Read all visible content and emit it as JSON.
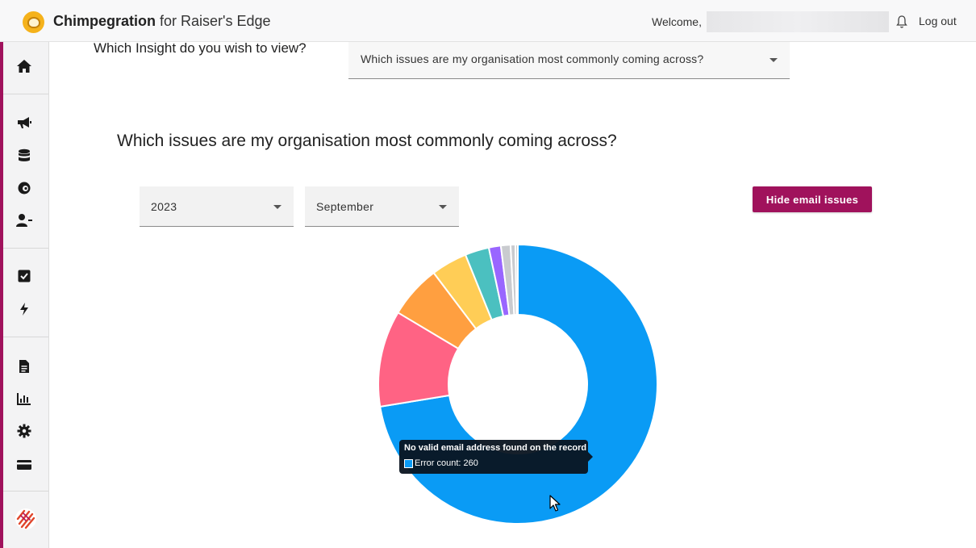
{
  "header": {
    "brand_name": "Chimpegration",
    "brand_suffix": "for Raiser's Edge",
    "welcome": "Welcome, ",
    "logout": "Log out"
  },
  "sidebar": {
    "items": [
      {
        "icon": "home-icon"
      },
      {
        "icon": "megaphone-icon"
      },
      {
        "icon": "database-icon"
      },
      {
        "icon": "mailchimp-icon"
      },
      {
        "icon": "user-minus-icon"
      },
      {
        "icon": "checkbox-icon"
      },
      {
        "icon": "lightning-icon"
      },
      {
        "icon": "document-icon"
      },
      {
        "icon": "bar-chart-icon"
      },
      {
        "icon": "gear-icon"
      },
      {
        "icon": "credit-card-icon"
      },
      {
        "icon": "company-logo-icon"
      }
    ]
  },
  "insight": {
    "label": "Which Insight do you wish to view?",
    "selected": "Which issues are my organisation most commonly coming across?"
  },
  "section": {
    "title": "Which issues are my organisation most commonly coming across?"
  },
  "filters": {
    "year": "2023",
    "month": "September"
  },
  "buttons": {
    "hide_email_issues": "Hide email issues"
  },
  "tooltip": {
    "title": "No valid email address found on the record",
    "body": "Error count: 260"
  },
  "colors": {
    "accent": "#a0125c",
    "blue": "#0a9bf5",
    "pink": "#ff6384",
    "orange": "#ff9f40",
    "yellow": "#ffcd56",
    "teal": "#4bc0c0",
    "purple": "#9966ff",
    "grey": "#c9cbcf"
  },
  "chart_data": {
    "type": "pie",
    "series": [
      {
        "values": [
          260,
          40,
          22,
          15,
          10,
          5,
          4,
          2,
          1
        ]
      }
    ]
  }
}
